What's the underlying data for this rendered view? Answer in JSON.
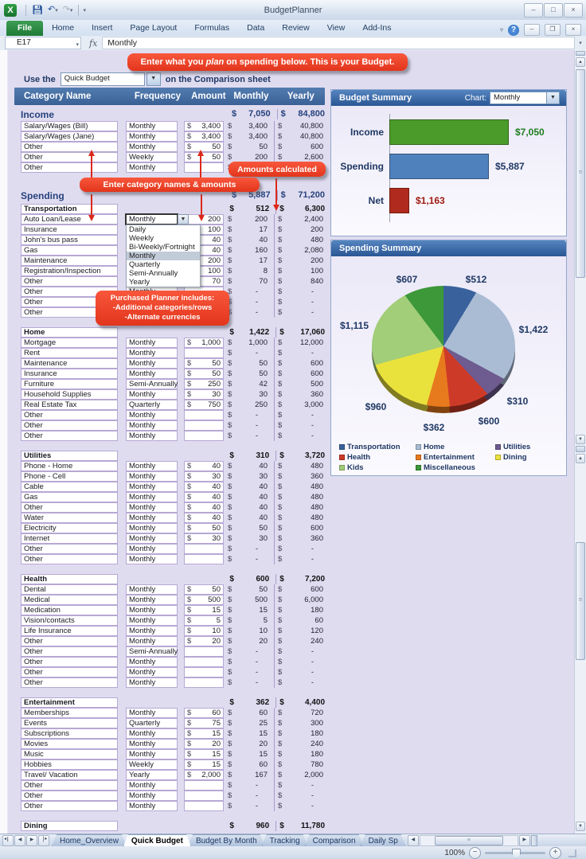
{
  "window": {
    "title": "BudgetPlanner",
    "controls": {
      "minimize": "–",
      "restore": "□",
      "close": "×"
    },
    "quick_access": [
      "excel-logo",
      "save",
      "undo",
      "redo",
      "customize-toolbar"
    ]
  },
  "ribbon": {
    "tabs": [
      "File",
      "Home",
      "Insert",
      "Page Layout",
      "Formulas",
      "Data",
      "Review",
      "View",
      "Add-Ins"
    ],
    "active_tab": "File"
  },
  "formula_bar": {
    "cell": "E17",
    "fx": "fx",
    "value": "Monthly"
  },
  "callouts": {
    "plan_pre": "Enter what you ",
    "plan_em": "plan",
    "plan_post": " on spending below.  This is your Budget.",
    "amounts": "Amounts calculated",
    "categories": "Enter category names & amounts",
    "purchased_line1": "Purchased Planner includes:",
    "purchased_line2": "-Additional categories/rows",
    "purchased_line3": "-Alternate currencies"
  },
  "use_the": {
    "prefix": "Use the",
    "value": "Quick Budget",
    "suffix": "on the Comparison sheet"
  },
  "freq_dropdown": {
    "options": [
      "Daily",
      "Weekly",
      "Bi-Weekly/Fortnight",
      "Monthly",
      "Quarterly",
      "Semi-Annually",
      "Yearly"
    ],
    "selected": "Monthly"
  },
  "table": {
    "headers": [
      "Category Name",
      "Frequency",
      "Amount",
      "Monthly",
      "Yearly"
    ],
    "income": {
      "label": "Income",
      "monthly": "7,050",
      "yearly": "84,800",
      "rows": [
        {
          "name": "Salary/Wages (Bill)",
          "freq": "Monthly",
          "amount": "3,400",
          "monthly": "3,400",
          "yearly": "40,800"
        },
        {
          "name": "Salary/Wages (Jane)",
          "freq": "Monthly",
          "amount": "3,400",
          "monthly": "3,400",
          "yearly": "40,800"
        },
        {
          "name": "Other",
          "freq": "Monthly",
          "amount": "50",
          "monthly": "50",
          "yearly": "600"
        },
        {
          "name": "Other",
          "freq": "Weekly",
          "amount": "50",
          "monthly": "200",
          "yearly": "2,600"
        },
        {
          "name": "Other",
          "freq": "Monthly",
          "amount": "",
          "monthly": "",
          "yearly": ""
        }
      ]
    },
    "spending": {
      "label": "Spending",
      "monthly": "5,887",
      "yearly": "71,200",
      "groups": [
        {
          "label": "Transportation",
          "monthly": "512",
          "yearly": "6,300",
          "rows": [
            {
              "name": "Auto Loan/Lease",
              "freq": "Monthly",
              "combo": true,
              "amount": "200",
              "no_dollar": true,
              "monthly": "200",
              "yearly": "2,400"
            },
            {
              "name": "Insurance",
              "freq": "",
              "amount": "100",
              "monthly": "17",
              "yearly": "200"
            },
            {
              "name": "John's bus pass",
              "freq": "",
              "amount": "40",
              "monthly": "40",
              "yearly": "480"
            },
            {
              "name": "Gas",
              "freq": "",
              "amount": "40",
              "monthly": "160",
              "yearly": "2,080"
            },
            {
              "name": "Maintenance",
              "freq": "",
              "amount": "200",
              "monthly": "17",
              "yearly": "200"
            },
            {
              "name": "Registration/Inspection",
              "freq": "",
              "amount": "100",
              "monthly": "8",
              "yearly": "100"
            },
            {
              "name": "Other",
              "freq": "Monthly",
              "amount": "70",
              "monthly": "70",
              "yearly": "840"
            },
            {
              "name": "Other",
              "freq": "Monthly",
              "amount": "",
              "monthly": "-",
              "yearly": "-"
            },
            {
              "name": "Other",
              "freq": "",
              "amount": "",
              "monthly": "-",
              "yearly": "-"
            },
            {
              "name": "Other",
              "freq": "",
              "amount": "",
              "monthly": "-",
              "yearly": "-"
            }
          ]
        },
        {
          "label": "Home",
          "monthly": "1,422",
          "yearly": "17,060",
          "rows": [
            {
              "name": "Mortgage",
              "freq": "Monthly",
              "amount": "1,000",
              "monthly": "1,000",
              "yearly": "12,000"
            },
            {
              "name": "Rent",
              "freq": "Monthly",
              "amount": "",
              "monthly": "-",
              "yearly": "-"
            },
            {
              "name": "Maintenance",
              "freq": "Monthly",
              "amount": "50",
              "monthly": "50",
              "yearly": "600"
            },
            {
              "name": "Insurance",
              "freq": "Monthly",
              "amount": "50",
              "monthly": "50",
              "yearly": "600"
            },
            {
              "name": "Furniture",
              "freq": "Semi-Annually",
              "amount": "250",
              "monthly": "42",
              "yearly": "500"
            },
            {
              "name": "Household Supplies",
              "freq": "Monthly",
              "amount": "30",
              "monthly": "30",
              "yearly": "360"
            },
            {
              "name": "Real Estate Tax",
              "freq": "Quarterly",
              "amount": "750",
              "monthly": "250",
              "yearly": "3,000"
            },
            {
              "name": "Other",
              "freq": "Monthly",
              "amount": "",
              "monthly": "-",
              "yearly": "-"
            },
            {
              "name": "Other",
              "freq": "Monthly",
              "amount": "",
              "monthly": "-",
              "yearly": "-"
            },
            {
              "name": "Other",
              "freq": "Monthly",
              "amount": "",
              "monthly": "-",
              "yearly": "-"
            }
          ]
        },
        {
          "label": "Utilities",
          "monthly": "310",
          "yearly": "3,720",
          "rows": [
            {
              "name": "Phone - Home",
              "freq": "Monthly",
              "amount": "40",
              "monthly": "40",
              "yearly": "480"
            },
            {
              "name": "Phone - Cell",
              "freq": "Monthly",
              "amount": "30",
              "monthly": "30",
              "yearly": "360"
            },
            {
              "name": "Cable",
              "freq": "Monthly",
              "amount": "40",
              "monthly": "40",
              "yearly": "480"
            },
            {
              "name": "Gas",
              "freq": "Monthly",
              "amount": "40",
              "monthly": "40",
              "yearly": "480"
            },
            {
              "name": "Other",
              "freq": "Monthly",
              "amount": "40",
              "monthly": "40",
              "yearly": "480"
            },
            {
              "name": "Water",
              "freq": "Monthly",
              "amount": "40",
              "monthly": "40",
              "yearly": "480"
            },
            {
              "name": "Electricity",
              "freq": "Monthly",
              "amount": "50",
              "monthly": "50",
              "yearly": "600"
            },
            {
              "name": "Internet",
              "freq": "Monthly",
              "amount": "30",
              "monthly": "30",
              "yearly": "360"
            },
            {
              "name": "Other",
              "freq": "Monthly",
              "amount": "",
              "monthly": "-",
              "yearly": "-"
            },
            {
              "name": "Other",
              "freq": "Monthly",
              "amount": "",
              "monthly": "-",
              "yearly": "-"
            }
          ]
        },
        {
          "label": "Health",
          "monthly": "600",
          "yearly": "7,200",
          "rows": [
            {
              "name": "Dental",
              "freq": "Monthly",
              "amount": "50",
              "monthly": "50",
              "yearly": "600"
            },
            {
              "name": "Medical",
              "freq": "Monthly",
              "amount": "500",
              "monthly": "500",
              "yearly": "6,000"
            },
            {
              "name": "Medication",
              "freq": "Monthly",
              "amount": "15",
              "monthly": "15",
              "yearly": "180"
            },
            {
              "name": "Vision/contacts",
              "freq": "Monthly",
              "amount": "5",
              "monthly": "5",
              "yearly": "60"
            },
            {
              "name": "Life Insurance",
              "freq": "Monthly",
              "amount": "10",
              "monthly": "10",
              "yearly": "120"
            },
            {
              "name": "Other",
              "freq": "Monthly",
              "amount": "20",
              "monthly": "20",
              "yearly": "240"
            },
            {
              "name": "Other",
              "freq": "Semi-Annually",
              "amount": "",
              "monthly": "-",
              "yearly": "-"
            },
            {
              "name": "Other",
              "freq": "Monthly",
              "amount": "",
              "monthly": "-",
              "yearly": "-"
            },
            {
              "name": "Other",
              "freq": "Monthly",
              "amount": "",
              "monthly": "-",
              "yearly": "-"
            },
            {
              "name": "Other",
              "freq": "Monthly",
              "amount": "",
              "monthly": "-",
              "yearly": "-"
            }
          ]
        },
        {
          "label": "Entertainment",
          "monthly": "362",
          "yearly": "4,400",
          "rows": [
            {
              "name": "Memberships",
              "freq": "Monthly",
              "amount": "60",
              "monthly": "60",
              "yearly": "720"
            },
            {
              "name": "Events",
              "freq": "Quarterly",
              "amount": "75",
              "monthly": "25",
              "yearly": "300"
            },
            {
              "name": "Subscriptions",
              "freq": "Monthly",
              "amount": "15",
              "monthly": "15",
              "yearly": "180"
            },
            {
              "name": "Movies",
              "freq": "Monthly",
              "amount": "20",
              "monthly": "20",
              "yearly": "240"
            },
            {
              "name": "Music",
              "freq": "Monthly",
              "amount": "15",
              "monthly": "15",
              "yearly": "180"
            },
            {
              "name": "Hobbies",
              "freq": "Weekly",
              "amount": "15",
              "monthly": "60",
              "yearly": "780"
            },
            {
              "name": "Travel/ Vacation",
              "freq": "Yearly",
              "amount": "2,000",
              "monthly": "167",
              "yearly": "2,000"
            },
            {
              "name": "Other",
              "freq": "Monthly",
              "amount": "",
              "monthly": "-",
              "yearly": "-"
            },
            {
              "name": "Other",
              "freq": "Monthly",
              "amount": "",
              "monthly": "-",
              "yearly": "-"
            },
            {
              "name": "Other",
              "freq": "Monthly",
              "amount": "",
              "monthly": "-",
              "yearly": "-"
            }
          ]
        },
        {
          "label": "Dining",
          "monthly": "960",
          "yearly": "11,780",
          "rows": []
        }
      ]
    }
  },
  "budget_summary": {
    "title": "Budget Summary",
    "chart_label": "Chart:",
    "chart_period": "Monthly",
    "chart_data": {
      "type": "bar",
      "categories": [
        "Income",
        "Spending",
        "Net"
      ],
      "values": [
        7050,
        5887,
        1163
      ],
      "labels": [
        "$7,050",
        "$5,887",
        "$1,163"
      ],
      "colors": [
        "#4B9B2B",
        "#4F81BD",
        "#B02B1D"
      ],
      "label_colors": [
        "#1E7D1E",
        "#1F3864",
        "#9E1A10"
      ],
      "xlim": [
        0,
        7050
      ]
    }
  },
  "spending_summary": {
    "title": "Spending Summary",
    "chart_data": {
      "type": "pie",
      "categories": [
        "Transportation",
        "Home",
        "Utilities",
        "Health",
        "Entertainment",
        "Dining",
        "Kids",
        "Miscellaneous"
      ],
      "values": [
        512,
        1422,
        310,
        600,
        362,
        960,
        1115,
        607
      ],
      "labels": [
        "$512",
        "$1,422",
        "$310",
        "$600",
        "$362",
        "$960",
        "$1,115",
        "$607"
      ],
      "colors": [
        "#39629C",
        "#A9BCD4",
        "#6E5B8F",
        "#CE3A28",
        "#E87A1E",
        "#EAE23C",
        "#A2CD79",
        "#3D9839"
      ],
      "legend_position": "bottom"
    }
  },
  "sheet_tabs": [
    {
      "label": "Home_Overview",
      "active": false
    },
    {
      "label": "Quick Budget",
      "active": true
    },
    {
      "label": "Budget By Month",
      "active": false
    },
    {
      "label": "Tracking",
      "active": false
    },
    {
      "label": "Comparison",
      "active": false
    },
    {
      "label": "Daily Sp",
      "active": false,
      "clipped": true
    }
  ],
  "status_bar": {
    "zoom": "100%"
  }
}
